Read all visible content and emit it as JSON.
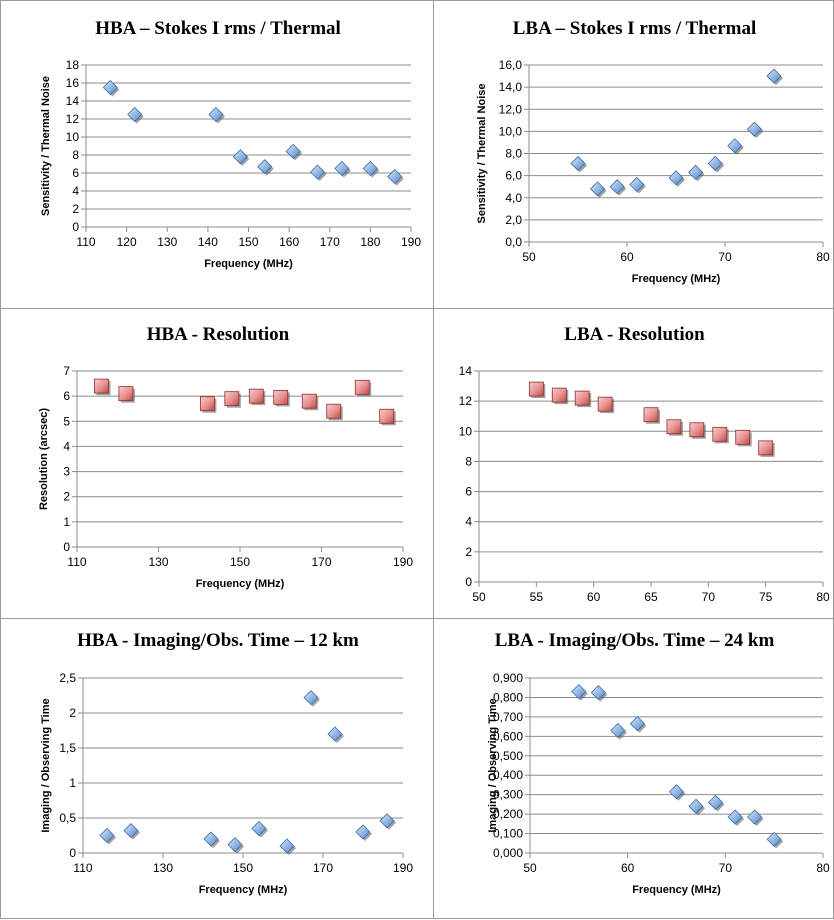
{
  "chart_data": [
    {
      "type": "scatter",
      "title": "HBA – Stokes I rms / Thermal",
      "xlabel": "Frequency (MHz)",
      "ylabel": "Sensitivity / Thermal Noise",
      "xlim": [
        110,
        190
      ],
      "ylim": [
        0,
        18
      ],
      "xticks": [
        "110",
        "120",
        "130",
        "140",
        "150",
        "160",
        "170",
        "180",
        "190"
      ],
      "yticks": [
        "0",
        "2",
        "4",
        "6",
        "8",
        "10",
        "12",
        "14",
        "16",
        "18"
      ],
      "marker": "diamond",
      "color": "#8db4e2",
      "x": [
        116,
        122,
        142,
        148,
        154,
        161,
        167,
        173,
        180,
        186
      ],
      "y": [
        15.5,
        12.5,
        12.5,
        7.8,
        6.7,
        8.4,
        6.1,
        6.5,
        6.5,
        5.6
      ]
    },
    {
      "type": "scatter",
      "title": "LBA – Stokes I rms / Thermal",
      "xlabel": "Frequency (MHz)",
      "ylabel": "Sensitivity / Thermal Noise",
      "xlim": [
        50,
        80
      ],
      "ylim": [
        0,
        16
      ],
      "xticks": [
        "50",
        "60",
        "70",
        "80"
      ],
      "yticks": [
        "0,0",
        "2,0",
        "4,0",
        "6,0",
        "8,0",
        "10,0",
        "12,0",
        "14,0",
        "16,0"
      ],
      "marker": "diamond",
      "color": "#8db4e2",
      "x": [
        55,
        57,
        59,
        61,
        65,
        67,
        69,
        71,
        73,
        75
      ],
      "y": [
        7.1,
        4.8,
        5.0,
        5.2,
        5.8,
        6.3,
        7.1,
        8.7,
        10.2,
        15.0
      ]
    },
    {
      "type": "scatter",
      "title": "HBA  - Resolution",
      "xlabel": "Frequency (MHz)",
      "ylabel": "Resolution (arcsec)",
      "xlim": [
        110,
        190
      ],
      "ylim": [
        0,
        7
      ],
      "xticks": [
        "110",
        "130",
        "150",
        "170",
        "190"
      ],
      "yticks": [
        "0",
        "1",
        "2",
        "3",
        "4",
        "5",
        "6",
        "7"
      ],
      "marker": "square",
      "color": "#e88e8e",
      "x": [
        116,
        122,
        142,
        148,
        154,
        160,
        167,
        173,
        180,
        186
      ],
      "y": [
        6.4,
        6.1,
        5.7,
        5.9,
        6.0,
        5.95,
        5.8,
        5.4,
        6.35,
        5.2
      ]
    },
    {
      "type": "scatter",
      "title": "LBA  - Resolution",
      "xlabel": "",
      "ylabel": "",
      "xlim": [
        50,
        80
      ],
      "ylim": [
        0,
        14
      ],
      "xticks": [
        "50",
        "55",
        "60",
        "65",
        "70",
        "75",
        "80"
      ],
      "yticks": [
        "0",
        "2",
        "4",
        "6",
        "8",
        "10",
        "12",
        "14"
      ],
      "marker": "square",
      "color": "#e88e8e",
      "x": [
        55,
        57,
        59,
        61,
        65,
        67,
        69,
        71,
        73,
        75
      ],
      "y": [
        12.8,
        12.4,
        12.2,
        11.8,
        11.1,
        10.3,
        10.1,
        9.8,
        9.6,
        8.9
      ]
    },
    {
      "type": "scatter",
      "title": "HBA  - Imaging/Obs. Time – 12 km",
      "xlabel": "Frequency (MHz)",
      "ylabel": "Imaging / Observing Time",
      "xlim": [
        110,
        190
      ],
      "ylim": [
        0,
        2.5
      ],
      "xticks": [
        "110",
        "130",
        "150",
        "170",
        "190"
      ],
      "yticks": [
        "0",
        "0,5",
        "1",
        "1,5",
        "2",
        "2,5"
      ],
      "marker": "diamond",
      "color": "#8db4e2",
      "x": [
        116,
        122,
        142,
        148,
        154,
        161,
        167,
        173,
        180,
        186
      ],
      "y": [
        0.25,
        0.32,
        0.2,
        0.12,
        0.35,
        0.1,
        2.22,
        1.7,
        0.3,
        0.46
      ]
    },
    {
      "type": "scatter",
      "title": "LBA  - Imaging/Obs. Time – 24 km",
      "xlabel": "Frequency (MHz)",
      "ylabel": "Imaging / Observing Time",
      "xlim": [
        50,
        80
      ],
      "ylim": [
        0,
        0.9
      ],
      "xticks": [
        "50",
        "60",
        "70",
        "80"
      ],
      "yticks": [
        "0,000",
        "0,100",
        "0,200",
        "0,300",
        "0,400",
        "0,500",
        "0,600",
        "0,700",
        "0,800",
        "0,900"
      ],
      "marker": "diamond",
      "color": "#8db4e2",
      "x": [
        55,
        57,
        59,
        61,
        65,
        67,
        69,
        71,
        73,
        75
      ],
      "y": [
        0.83,
        0.825,
        0.63,
        0.665,
        0.315,
        0.24,
        0.26,
        0.185,
        0.185,
        0.07
      ]
    }
  ]
}
